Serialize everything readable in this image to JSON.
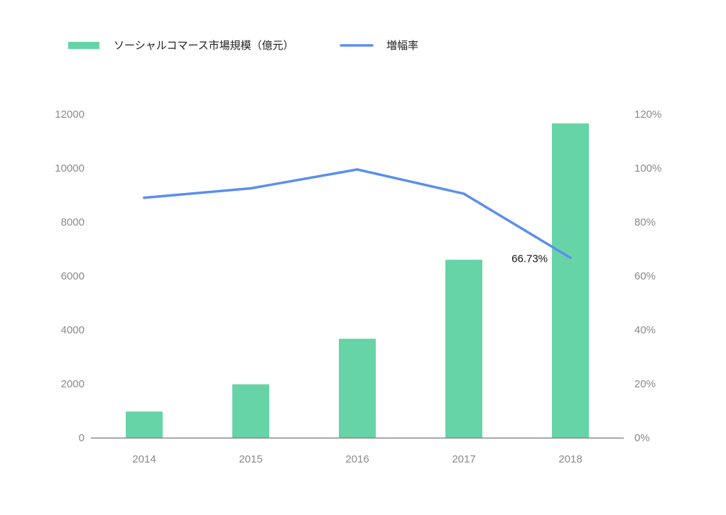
{
  "chart_data": {
    "type": "bar",
    "categories": [
      "2014",
      "2015",
      "2016",
      "2017",
      "2018"
    ],
    "series": [
      {
        "name": "ソーシャルコマース市場規模（億元）",
        "type": "bar",
        "axis": "left",
        "color": "#66d4a6",
        "values": [
          970,
          1980,
          3670,
          6600,
          11660
        ]
      },
      {
        "name": "増幅率",
        "type": "line",
        "axis": "right",
        "color": "#5b8ff0",
        "values": [
          89,
          92.5,
          99.5,
          90.5,
          66.73
        ]
      }
    ],
    "y_left": {
      "min": 0,
      "max": 12000,
      "ticks": [
        "0",
        "2000",
        "4000",
        "6000",
        "8000",
        "10000",
        "12000"
      ]
    },
    "y_right": {
      "min": 0,
      "max": 120,
      "ticks": [
        "0%",
        "20%",
        "40%",
        "60%",
        "80%",
        "100%",
        "120%"
      ]
    },
    "annotations": [
      {
        "category": "2018",
        "text": "66.73%"
      }
    ],
    "legend_position": "top-left",
    "grid": false
  }
}
